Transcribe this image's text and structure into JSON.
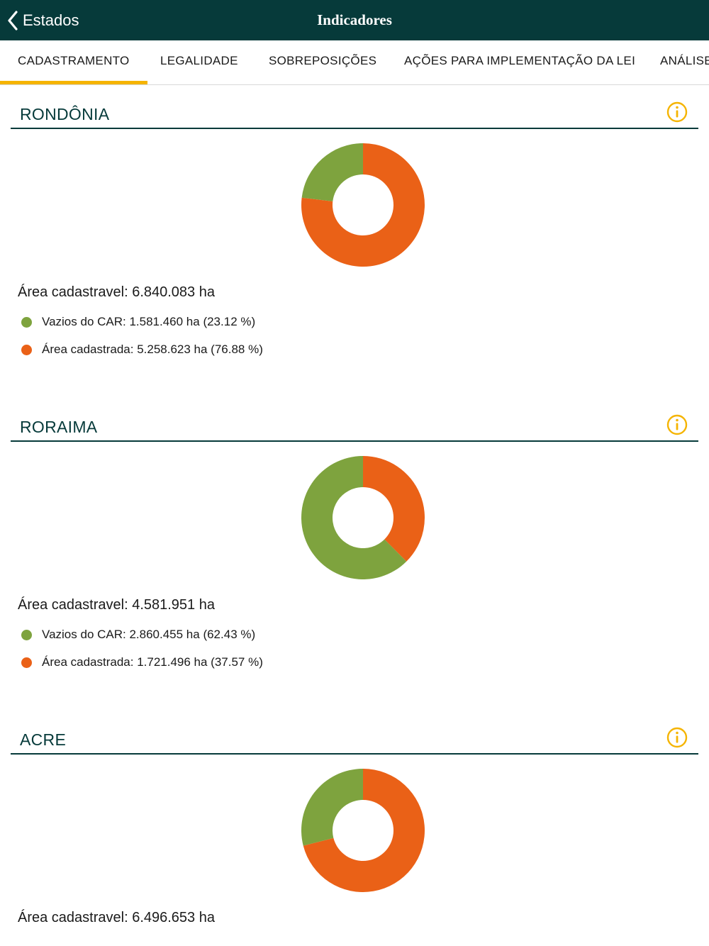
{
  "header": {
    "back_label": "Estados",
    "title": "Indicadores",
    "background": "#063a3a"
  },
  "tabs": [
    {
      "label": "CADASTRAMENTO",
      "active": true
    },
    {
      "label": "LEGALIDADE",
      "active": false
    },
    {
      "label": "SOBREPOSIÇÕES",
      "active": false
    },
    {
      "label": "AÇÕES PARA IMPLEMENTAÇÃO DA LEI",
      "active": false
    },
    {
      "label": "ANÁLISE",
      "active": false
    }
  ],
  "colors": {
    "green": "#7ea33e",
    "orange": "#ea6117",
    "accent": "#f5b400",
    "rule": "#063a3a"
  },
  "icons": {
    "back": "chevron-left-icon",
    "info": "info-icon"
  },
  "states": [
    {
      "name": "RONDÔNIA",
      "total": "Área cadastravel: 6.840.083 ha",
      "legend": [
        {
          "label": "Vazios do CAR: 1.581.460 ha (23.12 %)",
          "color": "#7ea33e"
        },
        {
          "label": "Área cadastrada: 5.258.623 ha (76.88 %)",
          "color": "#ea6117"
        }
      ]
    },
    {
      "name": "RORAIMA",
      "total": "Área cadastravel: 4.581.951 ha",
      "legend": [
        {
          "label": "Vazios do CAR: 2.860.455 ha (62.43 %)",
          "color": "#7ea33e"
        },
        {
          "label": "Área cadastrada: 1.721.496 ha (37.57 %)",
          "color": "#ea6117"
        }
      ]
    },
    {
      "name": "ACRE",
      "total": "Área cadastravel: 6.496.653 ha",
      "legend": []
    }
  ],
  "chart_data": [
    {
      "type": "pie",
      "categories": [
        "Vazios do CAR",
        "Área cadastrada"
      ],
      "values": [
        23.12,
        76.88
      ],
      "colors": [
        "#7ea33e",
        "#ea6117"
      ]
    },
    {
      "type": "pie",
      "categories": [
        "Vazios do CAR",
        "Área cadastrada"
      ],
      "values": [
        62.43,
        37.57
      ],
      "colors": [
        "#7ea33e",
        "#ea6117"
      ]
    },
    {
      "type": "pie",
      "categories": [
        "Vazios do CAR",
        "Área cadastrada"
      ],
      "values": [
        29,
        71
      ],
      "colors": [
        "#7ea33e",
        "#ea6117"
      ]
    }
  ]
}
